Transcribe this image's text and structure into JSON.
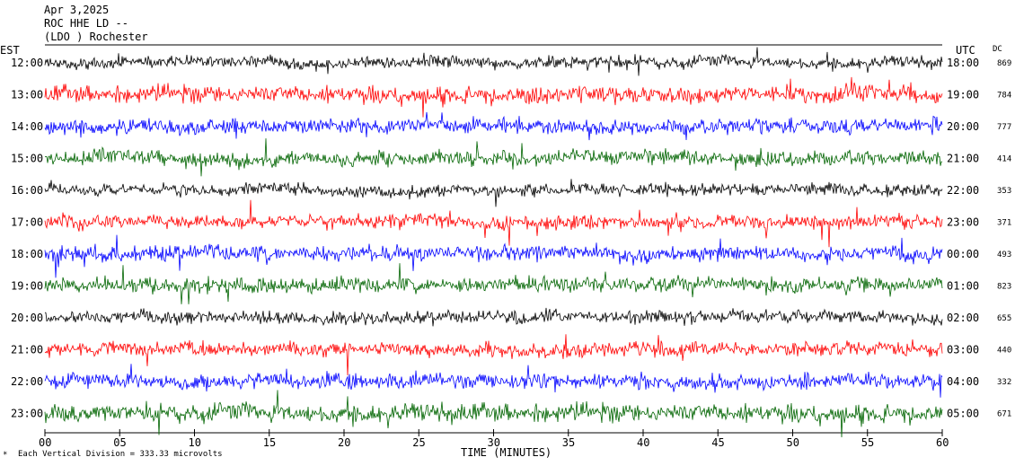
{
  "header": {
    "date": "Apr 3,2025",
    "station": "ROC HHE LD --",
    "location": "(LDO ) Rochester"
  },
  "labels": {
    "left_zone": "EST",
    "right_zone": "UTC",
    "dc": "DC",
    "x_axis": "TIME (MINUTES)",
    "footnote": "Each Vertical Division =  333.33 microvolts"
  },
  "colors": {
    "trace_cycle": [
      "#000000",
      "#ff0000",
      "#0000ff",
      "#006400"
    ]
  },
  "chart_data": {
    "type": "line",
    "description_kind": "helicorder seismogram",
    "x_ticks": [
      "00",
      "05",
      "10",
      "15",
      "20",
      "25",
      "30",
      "35",
      "40",
      "45",
      "50",
      "55",
      "60"
    ],
    "x_range": [
      0,
      60
    ],
    "rows": [
      {
        "est": "12:00",
        "utc": "18:00",
        "dc": "869",
        "color": "#000000",
        "amplitude": 0.55
      },
      {
        "est": "13:00",
        "utc": "19:00",
        "dc": "784",
        "color": "#ff0000",
        "amplitude": 0.8
      },
      {
        "est": "14:00",
        "utc": "20:00",
        "dc": "777",
        "color": "#0000ff",
        "amplitude": 0.75
      },
      {
        "est": "15:00",
        "utc": "21:00",
        "dc": "414",
        "color": "#006400",
        "amplitude": 0.7
      },
      {
        "est": "16:00",
        "utc": "22:00",
        "dc": "353",
        "color": "#000000",
        "amplitude": 0.55
      },
      {
        "est": "17:00",
        "utc": "23:00",
        "dc": "371",
        "color": "#ff0000",
        "amplitude": 0.65
      },
      {
        "est": "18:00",
        "utc": "00:00",
        "dc": "493",
        "color": "#0000ff",
        "amplitude": 0.7
      },
      {
        "est": "19:00",
        "utc": "01:00",
        "dc": "823",
        "color": "#006400",
        "amplitude": 0.7
      },
      {
        "est": "20:00",
        "utc": "02:00",
        "dc": "655",
        "color": "#000000",
        "amplitude": 0.6
      },
      {
        "est": "21:00",
        "utc": "03:00",
        "dc": "440",
        "color": "#ff0000",
        "amplitude": 0.65
      },
      {
        "est": "22:00",
        "utc": "04:00",
        "dc": "332",
        "color": "#0000ff",
        "amplitude": 0.7
      },
      {
        "est": "23:00",
        "utc": "05:00",
        "dc": "671",
        "color": "#006400",
        "amplitude": 0.85
      }
    ]
  }
}
